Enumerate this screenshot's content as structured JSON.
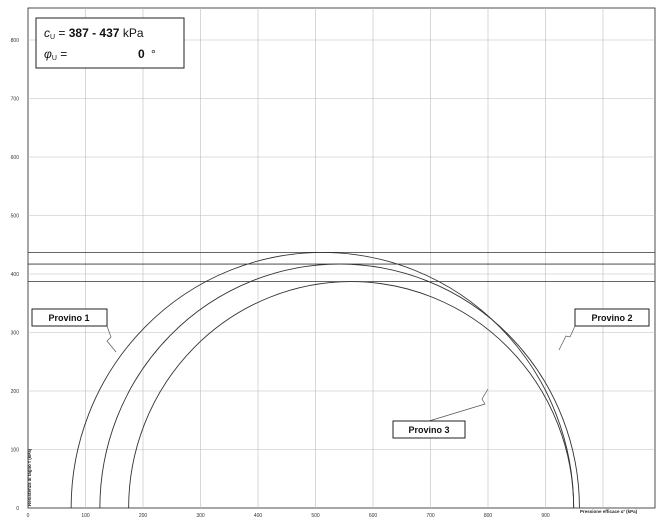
{
  "chart_data": {
    "type": "mohr-circles",
    "params": {
      "cu_label": "c",
      "cu_sub": "U",
      "cu_eq": " = ",
      "cu_value": "387 - 437",
      "cu_unit": "kPa",
      "phi_label": "φ",
      "phi_sub": "U",
      "phi_eq": " =",
      "phi_value": "0",
      "phi_unit": "°"
    },
    "xlabel": "Pressione efficace σ' (kPa)",
    "ylabel": "Resistenza al taglio τ (kPa)",
    "xlim": [
      0,
      1000
    ],
    "ylim": [
      0,
      850
    ],
    "x_ticks": [
      0,
      100,
      200,
      300,
      400,
      500,
      600,
      700,
      800,
      900
    ],
    "y_ticks": [
      0,
      100,
      200,
      300,
      400,
      500,
      600,
      700,
      800
    ],
    "envelopes": [
      387,
      417,
      437
    ],
    "circles": [
      {
        "name": "Provino 1",
        "sigma3": 75,
        "sigma1": 949
      },
      {
        "name": "Provino 2",
        "sigma3": 125,
        "sigma1": 959
      },
      {
        "name": "Provino 3",
        "sigma3": 175,
        "sigma1": 949
      }
    ],
    "labels": [
      {
        "text": "Provino 1",
        "circle": 0
      },
      {
        "text": "Provino 2",
        "circle": 1
      },
      {
        "text": "Provino 3",
        "circle": 2
      }
    ]
  }
}
